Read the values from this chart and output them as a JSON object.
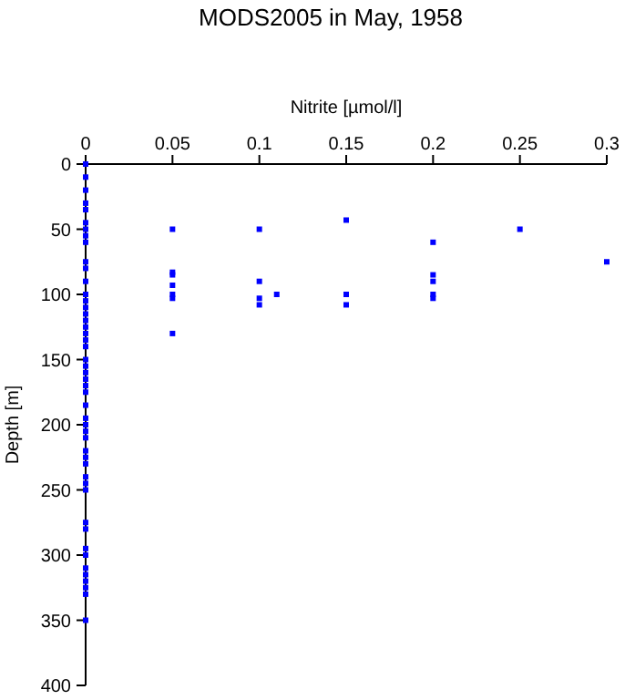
{
  "chart_data": {
    "type": "scatter",
    "title": "MODS2005 in May, 1958",
    "xlabel": "Nitrite [µmol/l]",
    "ylabel": "Depth [m]",
    "xlim": [
      0,
      0.3
    ],
    "xticks": [
      0,
      0.05,
      0.1,
      0.15,
      0.2,
      0.25,
      0.3
    ],
    "ylim": [
      400,
      0
    ],
    "yticks": [
      0,
      50,
      100,
      150,
      200,
      250,
      300,
      350,
      400
    ],
    "grid": false,
    "marker": "square",
    "series": [
      {
        "color": "#0000ff",
        "x": [
          0,
          0,
          0,
          0,
          0,
          0,
          0,
          0,
          0,
          0,
          0,
          0,
          0,
          0,
          0,
          0,
          0,
          0,
          0,
          0,
          0,
          0,
          0,
          0,
          0,
          0,
          0,
          0,
          0,
          0,
          0,
          0,
          0,
          0,
          0,
          0,
          0,
          0,
          0,
          0,
          0,
          0,
          0,
          0,
          0,
          0,
          0,
          0,
          0.05,
          0.05,
          0.05,
          0.05,
          0.05,
          0.05,
          0.05,
          0.1,
          0.1,
          0.1,
          0.1,
          0.11,
          0.15,
          0.15,
          0.15,
          0.2,
          0.2,
          0.2,
          0.2,
          0.2,
          0.25,
          0.3
        ],
        "values": [
          0,
          10,
          20,
          30,
          35,
          45,
          50,
          55,
          60,
          75,
          80,
          90,
          100,
          105,
          110,
          115,
          120,
          125,
          130,
          135,
          140,
          150,
          155,
          160,
          165,
          170,
          175,
          185,
          195,
          200,
          205,
          210,
          220,
          225,
          230,
          240,
          245,
          250,
          275,
          280,
          295,
          300,
          310,
          315,
          320,
          325,
          330,
          350,
          50,
          83,
          85,
          93,
          100,
          103,
          130,
          50,
          90,
          103,
          108,
          100,
          43,
          100,
          108,
          60,
          85,
          90,
          100,
          103,
          50,
          75
        ]
      }
    ]
  }
}
